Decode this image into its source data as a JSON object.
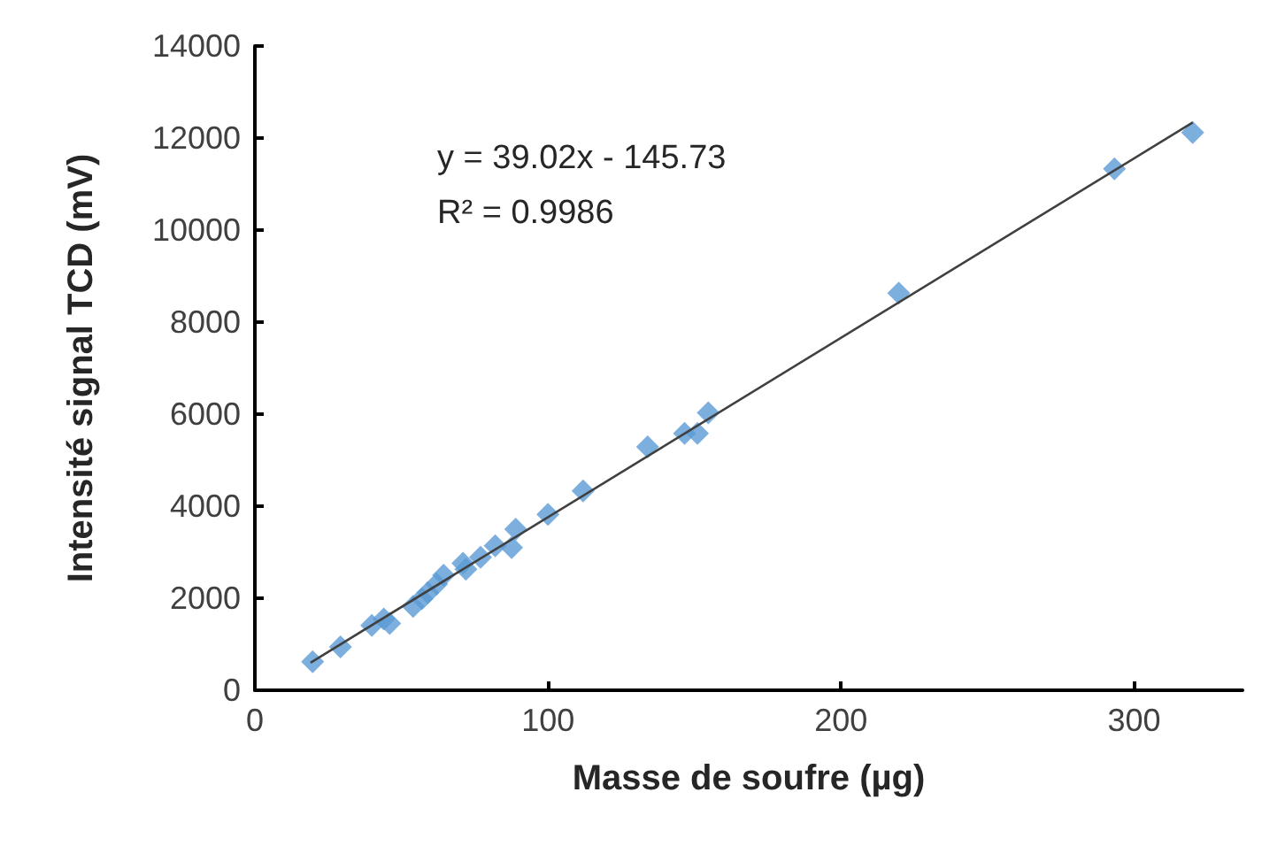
{
  "chart_data": {
    "type": "scatter",
    "xlabel": "Masse de soufre (µg)",
    "ylabel": "Intensité signal TCD (mV)",
    "annotations": [
      "y = 39.02x - 145.73",
      "R² = 0.9986"
    ],
    "xlim": [
      0,
      337
    ],
    "xticks": [
      0,
      100,
      200,
      300
    ],
    "ylim": [
      0,
      14000
    ],
    "yticks": [
      0,
      2000,
      4000,
      6000,
      8000,
      10000,
      12000,
      14000
    ],
    "grid": false,
    "marker": "diamond",
    "series": [
      {
        "color": "#5b9bd5",
        "x": [
          19.7,
          29.2,
          39.9,
          44,
          46,
          54,
          57,
          59,
          62,
          64.4,
          71,
          72,
          77,
          82,
          87.6,
          89,
          100,
          112,
          134,
          146.6,
          151,
          154.7,
          219.7,
          293.3,
          320
        ],
        "values": [
          620,
          940,
          1410,
          1550,
          1450,
          1820,
          1990,
          2120,
          2310,
          2500,
          2760,
          2630,
          2890,
          3140,
          3100,
          3500,
          3820,
          4330,
          5290,
          5580,
          5580,
          6030,
          8630,
          11330,
          12120
        ]
      },
      {
        "type": "line",
        "color": "#404040",
        "marker": "none",
        "line_style": "solid",
        "x": [
          19,
          320
        ],
        "values": [
          600,
          12340
        ]
      }
    ]
  }
}
